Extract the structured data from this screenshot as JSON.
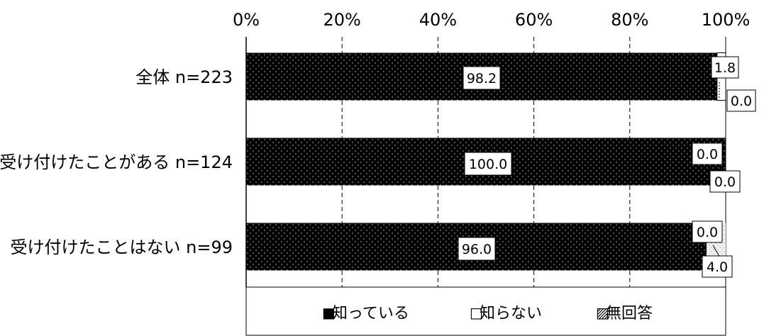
{
  "chart_data": {
    "type": "bar",
    "orientation": "horizontal",
    "stacked": true,
    "title": "",
    "xlabel": "",
    "ylabel": "",
    "xlim": [
      0,
      100
    ],
    "x_tick_labels": [
      "0%",
      "20%",
      "40%",
      "60%",
      "80%",
      "100%"
    ],
    "x_ticks": [
      0,
      20,
      40,
      60,
      80,
      100
    ],
    "grid": true,
    "legend_position": "bottom",
    "categories": [
      "全体  n=223",
      "受け付けたことがある  n=124",
      "受け付けたことはない  n=99"
    ],
    "series": [
      {
        "name": "知っている",
        "marker": "■",
        "values": [
          98.2,
          100.0,
          96.0
        ],
        "labels": [
          "98.2",
          "100.0",
          "96.0"
        ],
        "pattern": "dark-dotted"
      },
      {
        "name": "知らない",
        "marker": "□",
        "values": [
          1.8,
          0.0,
          0.0
        ],
        "labels": [
          "1.8",
          "0.0",
          "0.0"
        ],
        "pattern": "white"
      },
      {
        "name": "無回答",
        "marker": "▨",
        "values": [
          0.0,
          0.0,
          4.0
        ],
        "labels": [
          "0.0",
          "0.0",
          "4.0"
        ],
        "pattern": "light-dotted"
      }
    ]
  },
  "colors": {
    "dark_fill": "#000000",
    "dot_fill": "#d8d8d8",
    "white_fill": "#ffffff",
    "light_fill": "#f2f2f2",
    "stroke": "#000000"
  }
}
